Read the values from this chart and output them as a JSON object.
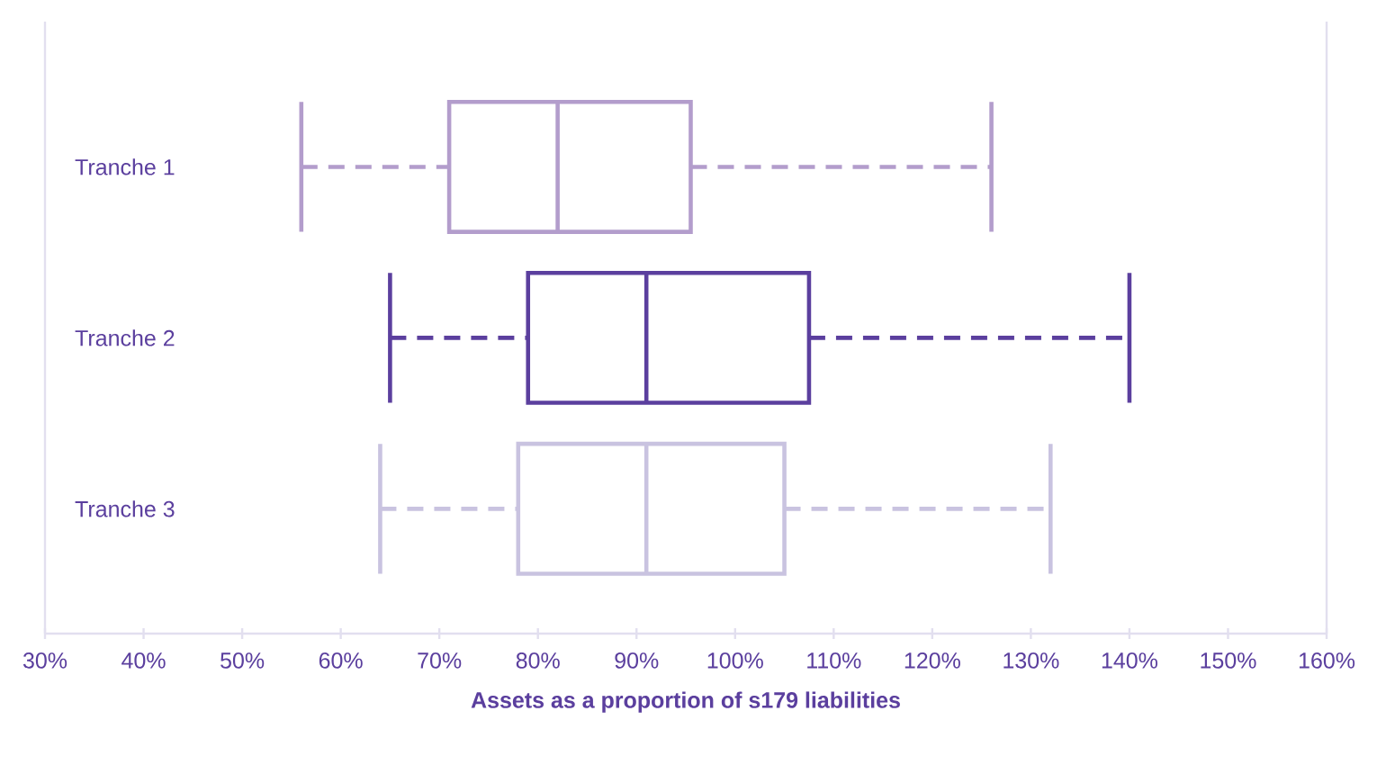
{
  "chart_data": {
    "type": "box",
    "orientation": "horizontal",
    "categories": [
      "Tranche 1",
      "Tranche 2",
      "Tranche 3"
    ],
    "colors": [
      "#b39dcc",
      "#5b3f9e",
      "#c9c3e0"
    ],
    "boxes": [
      {
        "low": 56,
        "q1": 71,
        "median": 82,
        "q3": 95.5,
        "high": 126
      },
      {
        "low": 65,
        "q1": 79,
        "median": 91,
        "q3": 107.5,
        "high": 140
      },
      {
        "low": 64,
        "q1": 78,
        "median": 91,
        "q3": 105,
        "high": 132
      }
    ],
    "xlim": [
      30,
      160
    ],
    "xticks": [
      {
        "value": 30,
        "label": "30%"
      },
      {
        "value": 40,
        "label": "40%"
      },
      {
        "value": 50,
        "label": "50%"
      },
      {
        "value": 60,
        "label": "60%"
      },
      {
        "value": 70,
        "label": "70%"
      },
      {
        "value": 80,
        "label": "80%"
      },
      {
        "value": 90,
        "label": "90%"
      },
      {
        "value": 100,
        "label": "100%"
      },
      {
        "value": 110,
        "label": "110%"
      },
      {
        "value": 120,
        "label": "120%"
      },
      {
        "value": 130,
        "label": "130%"
      },
      {
        "value": 140,
        "label": "140%"
      },
      {
        "value": 150,
        "label": "150%"
      },
      {
        "value": 160,
        "label": "160%"
      }
    ],
    "xlabel": "Assets as a proportion of s179 liabilities"
  }
}
